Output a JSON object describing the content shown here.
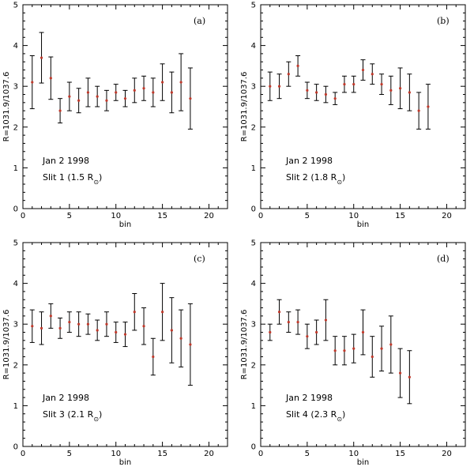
{
  "chart_data": [
    {
      "type": "scatter",
      "panel_label": "(a)",
      "xlabel": "bin",
      "ylabel": "R=1031.9/1037.6",
      "xlim": [
        0,
        22
      ],
      "ylim": [
        0,
        5
      ],
      "xticks": [
        0,
        5,
        10,
        15,
        20
      ],
      "yticks": [
        0,
        1,
        2,
        3,
        4,
        5
      ],
      "annotation_line1": "Jan 2 1998",
      "annotation_line2": "Slit 1 (1.5 R",
      "annotation_sub": "⊙",
      "annotation_close": ")",
      "x": [
        1,
        2,
        3,
        4,
        5,
        6,
        7,
        8,
        9,
        10,
        11,
        12,
        13,
        14,
        15,
        16,
        17,
        18
      ],
      "y": [
        3.1,
        3.7,
        3.2,
        2.4,
        2.75,
        2.65,
        2.85,
        2.75,
        2.65,
        2.85,
        2.7,
        2.9,
        2.95,
        2.85,
        3.1,
        2.85,
        3.1,
        2.7
      ],
      "err": [
        0.65,
        0.62,
        0.52,
        0.3,
        0.35,
        0.3,
        0.35,
        0.25,
        0.25,
        0.2,
        0.2,
        0.3,
        0.3,
        0.35,
        0.45,
        0.5,
        0.7,
        0.75
      ]
    },
    {
      "type": "scatter",
      "panel_label": "(b)",
      "xlabel": "bin",
      "ylabel": "R=1031.9/1037.6",
      "xlim": [
        0,
        22
      ],
      "ylim": [
        0,
        5
      ],
      "xticks": [
        0,
        5,
        10,
        15,
        20
      ],
      "yticks": [
        0,
        1,
        2,
        3,
        4,
        5
      ],
      "annotation_line1": "Jan 2 1998",
      "annotation_line2": "Slit 2 (1.8 R",
      "annotation_sub": "⊙",
      "annotation_close": ")",
      "x": [
        1,
        2,
        3,
        4,
        5,
        6,
        7,
        8,
        9,
        10,
        11,
        12,
        13,
        14,
        15,
        16,
        17,
        18
      ],
      "y": [
        3.0,
        3.0,
        3.3,
        3.5,
        2.9,
        2.85,
        2.8,
        2.7,
        3.05,
        3.05,
        3.4,
        3.3,
        3.05,
        2.9,
        2.95,
        2.85,
        2.4,
        2.5
      ],
      "err": [
        0.35,
        0.3,
        0.3,
        0.25,
        0.2,
        0.2,
        0.2,
        0.15,
        0.2,
        0.2,
        0.25,
        0.25,
        0.25,
        0.35,
        0.5,
        0.45,
        0.45,
        0.55
      ]
    },
    {
      "type": "scatter",
      "panel_label": "(c)",
      "xlabel": "bin",
      "ylabel": "R=1031.9/1037.6",
      "xlim": [
        0,
        22
      ],
      "ylim": [
        0,
        5
      ],
      "xticks": [
        0,
        5,
        10,
        15,
        20
      ],
      "yticks": [
        0,
        1,
        2,
        3,
        4,
        5
      ],
      "annotation_line1": "Jan 2 1998",
      "annotation_line2": "Slit 3 (2.1 R",
      "annotation_sub": "⊙",
      "annotation_close": ")",
      "x": [
        1,
        2,
        3,
        4,
        5,
        6,
        7,
        8,
        9,
        10,
        11,
        12,
        13,
        14,
        15,
        16,
        17,
        18
      ],
      "y": [
        2.95,
        2.9,
        3.2,
        2.9,
        3.05,
        3.0,
        3.0,
        2.85,
        3.0,
        2.8,
        2.75,
        3.3,
        2.95,
        2.2,
        3.3,
        2.85,
        2.65,
        2.5
      ],
      "err": [
        0.4,
        0.4,
        0.3,
        0.25,
        0.25,
        0.3,
        0.25,
        0.25,
        0.3,
        0.25,
        0.3,
        0.45,
        0.45,
        0.45,
        0.7,
        0.8,
        0.7,
        1.0
      ]
    },
    {
      "type": "scatter",
      "panel_label": "(d)",
      "xlabel": "bin",
      "ylabel": "R=1031.9/1037.6",
      "xlim": [
        0,
        22
      ],
      "ylim": [
        0,
        5
      ],
      "xticks": [
        0,
        5,
        10,
        15,
        20
      ],
      "yticks": [
        0,
        1,
        2,
        3,
        4,
        5
      ],
      "annotation_line1": "Jan 2 1998",
      "annotation_line2": "Slit 4 (2.3 R",
      "annotation_sub": "⊙",
      "annotation_close": ")",
      "x": [
        1,
        2,
        3,
        4,
        5,
        6,
        7,
        8,
        9,
        10,
        11,
        12,
        13,
        14,
        15,
        16
      ],
      "y": [
        2.8,
        3.3,
        3.05,
        3.05,
        2.7,
        2.8,
        3.1,
        2.35,
        2.35,
        2.4,
        2.8,
        2.2,
        2.4,
        2.5,
        1.8,
        1.7
      ],
      "err": [
        0.2,
        0.3,
        0.25,
        0.3,
        0.3,
        0.3,
        0.5,
        0.35,
        0.35,
        0.35,
        0.55,
        0.5,
        0.55,
        0.7,
        0.6,
        0.65
      ]
    }
  ]
}
